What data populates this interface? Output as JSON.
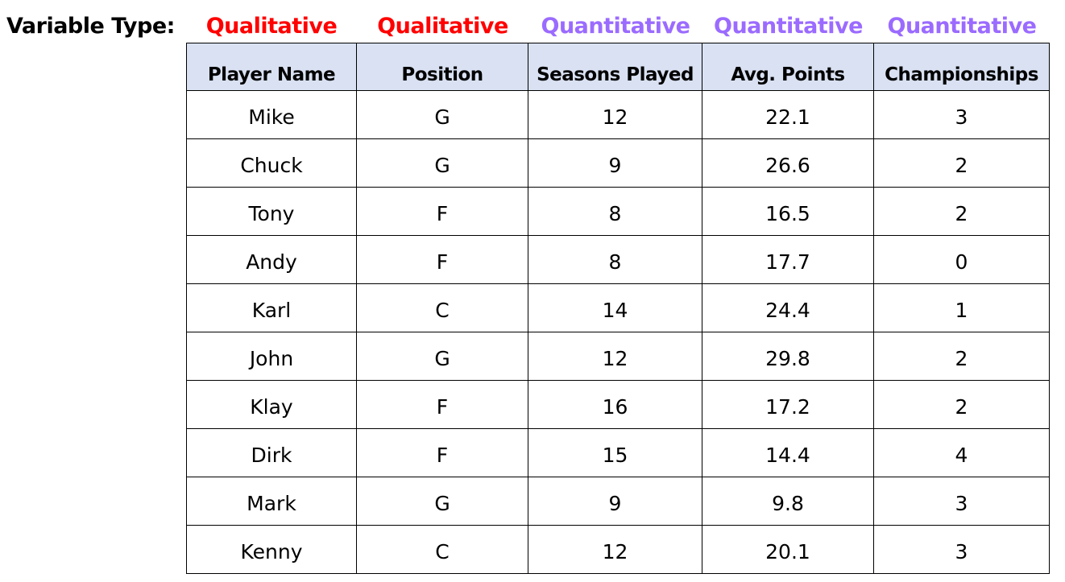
{
  "header": {
    "label": "Variable Type:",
    "types": [
      "Qualitative",
      "Qualitative",
      "Quantitative",
      "Quantitative",
      "Quantitative"
    ]
  },
  "table": {
    "columns": [
      "Player Name",
      "Position",
      "Seasons Played",
      "Avg. Points",
      "Championships"
    ],
    "rows": [
      [
        "Mike",
        "G",
        12,
        22.1,
        3
      ],
      [
        "Chuck",
        "G",
        9,
        26.6,
        2
      ],
      [
        "Tony",
        "F",
        8,
        16.5,
        2
      ],
      [
        "Andy",
        "F",
        8,
        17.7,
        0
      ],
      [
        "Karl",
        "C",
        14,
        24.4,
        1
      ],
      [
        "John",
        "G",
        12,
        29.8,
        2
      ],
      [
        "Klay",
        "F",
        16,
        17.2,
        2
      ],
      [
        "Dirk",
        "F",
        15,
        14.4,
        4
      ],
      [
        "Mark",
        "G",
        9,
        9.8,
        3
      ],
      [
        "Kenny",
        "C",
        12,
        20.1,
        3
      ]
    ]
  }
}
